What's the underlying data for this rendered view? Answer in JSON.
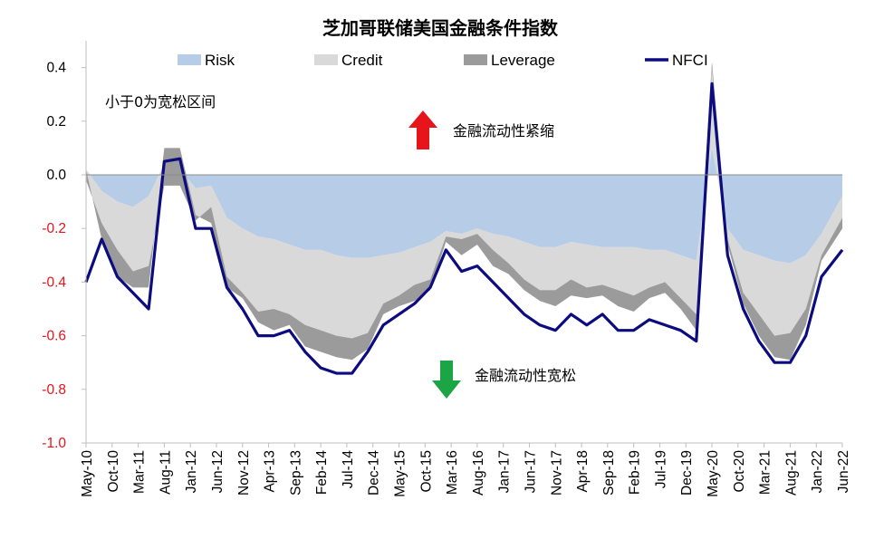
{
  "chart_data": {
    "type": "area",
    "title": "芝加哥联储美国金融条件指数",
    "ylim": [
      -1.0,
      0.5
    ],
    "yticks": [
      "0.4",
      "0.2",
      "0.0",
      "-0.2",
      "-0.4",
      "-0.6",
      "-0.8",
      "-1.0"
    ],
    "ytick_values": [
      0.4,
      0.2,
      0.0,
      -0.2,
      -0.4,
      -0.6,
      -0.8,
      -1.0
    ],
    "xlim": [
      "2010-05",
      "2022-06"
    ],
    "xticks": [
      "May-10",
      "Oct-10",
      "Mar-11",
      "Aug-11",
      "Jan-12",
      "Jun-12",
      "Nov-12",
      "Apr-13",
      "Sep-13",
      "Feb-14",
      "Jul-14",
      "Dec-14",
      "May-15",
      "Oct-15",
      "Mar-16",
      "Aug-16",
      "Jan-17",
      "Jun-17",
      "Nov-17",
      "Apr-18",
      "Sep-18",
      "Feb-19",
      "Jul-19",
      "Dec-19",
      "May-20",
      "Oct-20",
      "Mar-21",
      "Aug-21",
      "Jan-22",
      "Jun-22"
    ],
    "x": [
      "2010-05",
      "2010-08",
      "2010-11",
      "2011-02",
      "2011-05",
      "2011-08",
      "2011-11",
      "2012-02",
      "2012-05",
      "2012-08",
      "2012-11",
      "2013-02",
      "2013-05",
      "2013-08",
      "2013-11",
      "2014-02",
      "2014-05",
      "2014-08",
      "2014-11",
      "2015-02",
      "2015-05",
      "2015-08",
      "2015-11",
      "2016-02",
      "2016-05",
      "2016-08",
      "2016-11",
      "2017-02",
      "2017-05",
      "2017-08",
      "2017-11",
      "2018-02",
      "2018-05",
      "2018-08",
      "2018-11",
      "2019-02",
      "2019-05",
      "2019-08",
      "2019-11",
      "2020-02",
      "2020-05",
      "2020-08",
      "2020-11",
      "2021-02",
      "2021-05",
      "2021-08",
      "2021-11",
      "2022-02",
      "2022-06"
    ],
    "series": [
      {
        "name": "Risk",
        "color": "#b7cde7",
        "values": [
          0.02,
          -0.06,
          -0.1,
          -0.12,
          -0.08,
          0.04,
          0.02,
          -0.05,
          -0.04,
          -0.16,
          -0.2,
          -0.23,
          -0.24,
          -0.26,
          -0.28,
          -0.28,
          -0.3,
          -0.31,
          -0.31,
          -0.3,
          -0.29,
          -0.27,
          -0.25,
          -0.21,
          -0.22,
          -0.2,
          -0.22,
          -0.23,
          -0.25,
          -0.27,
          -0.27,
          -0.25,
          -0.26,
          -0.27,
          -0.27,
          -0.27,
          -0.28,
          -0.28,
          -0.3,
          -0.32,
          0.1,
          -0.2,
          -0.28,
          -0.3,
          -0.32,
          -0.33,
          -0.3,
          -0.22,
          -0.08
        ]
      },
      {
        "name": "Credit",
        "color": "#d9d9d9",
        "values": [
          -0.04,
          -0.12,
          -0.18,
          -0.24,
          -0.26,
          -0.08,
          -0.06,
          -0.12,
          -0.08,
          -0.22,
          -0.24,
          -0.28,
          -0.26,
          -0.26,
          -0.28,
          -0.3,
          -0.3,
          -0.3,
          -0.28,
          -0.18,
          -0.16,
          -0.14,
          -0.14,
          -0.02,
          -0.02,
          -0.02,
          -0.06,
          -0.1,
          -0.14,
          -0.16,
          -0.16,
          -0.14,
          -0.16,
          -0.14,
          -0.16,
          -0.18,
          -0.14,
          -0.12,
          -0.16,
          -0.2,
          0.32,
          -0.04,
          -0.16,
          -0.22,
          -0.28,
          -0.26,
          -0.2,
          -0.08,
          -0.08
        ]
      },
      {
        "name": "Leverage",
        "color": "#9b9b9b",
        "values": [
          0.04,
          -0.06,
          -0.1,
          -0.06,
          -0.08,
          0.14,
          0.14,
          0.02,
          -0.06,
          -0.04,
          -0.02,
          -0.04,
          -0.08,
          -0.04,
          -0.08,
          -0.08,
          -0.08,
          -0.08,
          -0.06,
          -0.04,
          -0.04,
          -0.06,
          -0.04,
          -0.02,
          -0.06,
          -0.04,
          -0.06,
          -0.04,
          -0.04,
          -0.04,
          -0.06,
          -0.06,
          -0.04,
          -0.04,
          -0.06,
          -0.06,
          -0.04,
          -0.04,
          -0.04,
          -0.06,
          -0.02,
          -0.02,
          -0.04,
          -0.08,
          -0.08,
          -0.1,
          -0.06,
          -0.02,
          -0.04
        ]
      },
      {
        "name": "NFCI",
        "color": "#0c0c80",
        "values": [
          -0.4,
          -0.24,
          -0.38,
          -0.44,
          -0.5,
          0.05,
          0.06,
          -0.2,
          -0.2,
          -0.42,
          -0.5,
          -0.6,
          -0.6,
          -0.58,
          -0.66,
          -0.72,
          -0.74,
          -0.74,
          -0.66,
          -0.56,
          -0.52,
          -0.48,
          -0.42,
          -0.28,
          -0.36,
          -0.34,
          -0.4,
          -0.46,
          -0.52,
          -0.56,
          -0.58,
          -0.52,
          -0.56,
          -0.52,
          -0.58,
          -0.58,
          -0.54,
          -0.56,
          -0.58,
          -0.62,
          0.34,
          -0.3,
          -0.5,
          -0.62,
          -0.7,
          -0.7,
          -0.6,
          -0.38,
          -0.28
        ]
      }
    ],
    "legend": {
      "placement": "top",
      "items": [
        "Risk",
        "Credit",
        "Leverage",
        "NFCI"
      ]
    },
    "annotations": {
      "easy_zone": "小于0为宽松区间",
      "tightening": "金融流动性紧缩",
      "loosening": "金融流动性宽松"
    },
    "colors": {
      "arrow_up": "#e8141c",
      "arrow_down": "#1ba545",
      "negative_tick": "#e8141c",
      "axis": "#bfbfbf"
    },
    "grid": false
  }
}
